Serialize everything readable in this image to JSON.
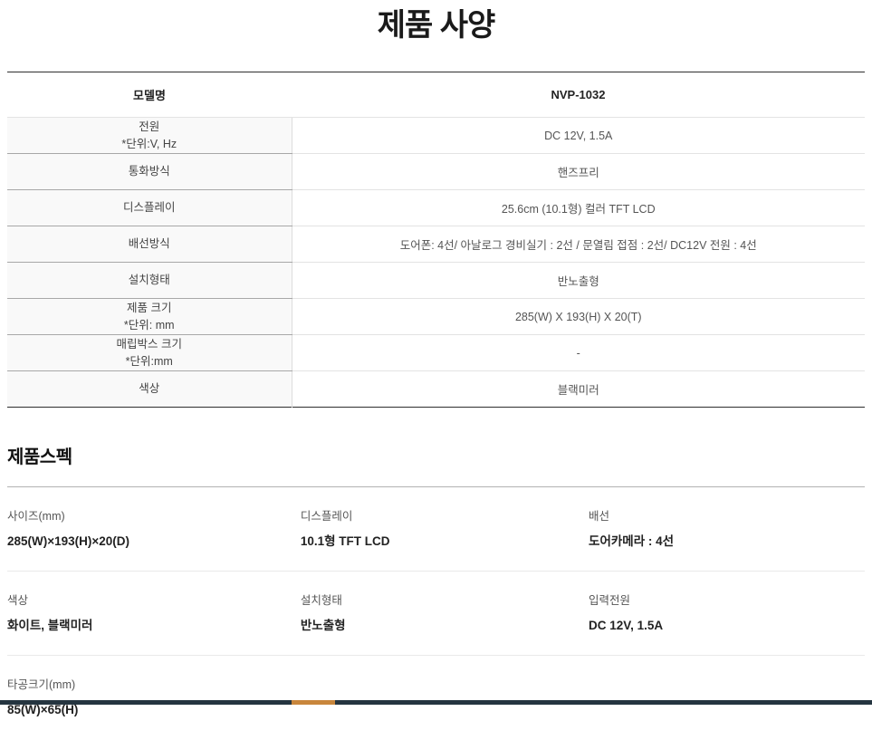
{
  "page": {
    "title": "제품 사양"
  },
  "spec_table": {
    "header": {
      "label": "모델명",
      "value": "NVP-1032"
    },
    "rows": [
      {
        "label": "전원",
        "note": "*단위:V, Hz",
        "value": "DC 12V, 1.5A"
      },
      {
        "label": "통화방식",
        "value": "핸즈프리"
      },
      {
        "label": "디스플레이",
        "value": "25.6cm (10.1형) 컬러 TFT LCD"
      },
      {
        "label": "배선방식",
        "value": "도어폰: 4선/ 아날로그 경비실기 : 2선 / 문열림 접점 : 2선/ DC12V 전원 : 4선"
      },
      {
        "label": "설치형태",
        "value": "반노출형"
      },
      {
        "label": "제품 크기",
        "note": "*단위: mm",
        "value": "285(W) X 193(H) X 20(T)"
      },
      {
        "label": "매립박스 크기",
        "note": "*단위:mm",
        "value": "-"
      },
      {
        "label": "색상",
        "value": "블랙미러"
      }
    ]
  },
  "product_spec": {
    "heading": "제품스펙",
    "rows": [
      [
        {
          "label": "사이즈(mm)",
          "value": "285(W)×193(H)×20(D)"
        },
        {
          "label": "디스플레이",
          "value": "10.1형 TFT LCD"
        },
        {
          "label": "배선",
          "value": "도어카메라 : 4선"
        }
      ],
      [
        {
          "label": "색상",
          "value": "화이트, 블랙미러"
        },
        {
          "label": "설치형태",
          "value": "반노출형"
        },
        {
          "label": "입력전원",
          "value": "DC 12V, 1.5A"
        }
      ],
      [
        {
          "label": "타공크기(mm)",
          "value": "85(W)×65(H)"
        }
      ]
    ]
  },
  "footer": {
    "bar_color": "#253540",
    "accent_color": "#c8863c"
  }
}
